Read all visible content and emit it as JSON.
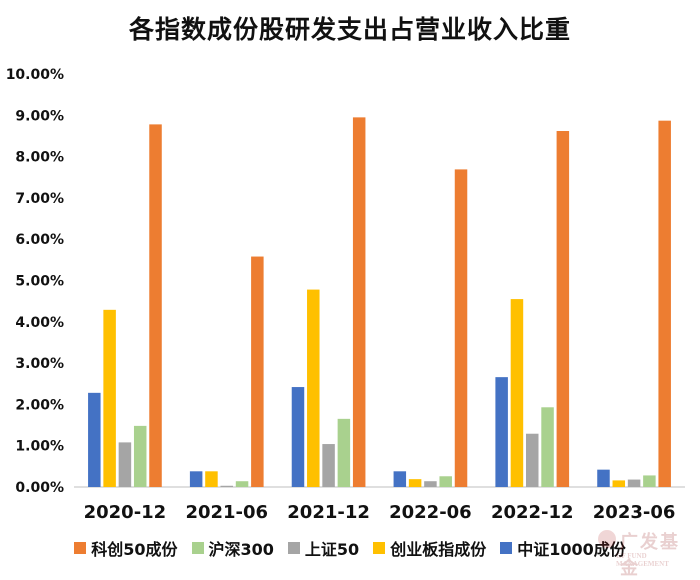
{
  "chart_data": {
    "type": "bar",
    "title": "各指数成份股研发支出占营业收入比重",
    "categories": [
      "2020-12",
      "2021-06",
      "2021-12",
      "2022-06",
      "2022-12",
      "2023-06"
    ],
    "series": [
      {
        "name": "中证1000成份",
        "color": "#4472C4",
        "values": [
          2.28,
          0.38,
          2.42,
          0.38,
          2.66,
          0.42
        ]
      },
      {
        "name": "创业板指成份",
        "color": "#FFC000",
        "values": [
          4.29,
          0.38,
          4.78,
          0.19,
          4.55,
          0.16
        ]
      },
      {
        "name": "上证50",
        "color": "#A5A5A5",
        "values": [
          1.08,
          0.03,
          1.04,
          0.14,
          1.29,
          0.18
        ]
      },
      {
        "name": "沪深300",
        "color": "#A9D18E",
        "values": [
          1.48,
          0.14,
          1.65,
          0.26,
          1.93,
          0.28
        ]
      },
      {
        "name": "科创50成份",
        "color": "#ED7D31",
        "values": [
          8.78,
          5.58,
          8.95,
          7.69,
          8.62,
          8.87
        ]
      }
    ],
    "legend_order": [
      "科创50成份",
      "沪深300",
      "上证50",
      "创业板指成份",
      "中证1000成份"
    ],
    "yticks": [
      "0.00%",
      "1.00%",
      "2.00%",
      "3.00%",
      "4.00%",
      "5.00%",
      "6.00%",
      "7.00%",
      "8.00%",
      "9.00%",
      "10.00%"
    ],
    "ylim": [
      0,
      10
    ],
    "ylabel_unit": "%",
    "xlabel": "",
    "ylabel": "",
    "legend_position": "bottom"
  },
  "watermark": {
    "text": "广发基金",
    "subtext": "GF FUND MANAGEMENT"
  }
}
